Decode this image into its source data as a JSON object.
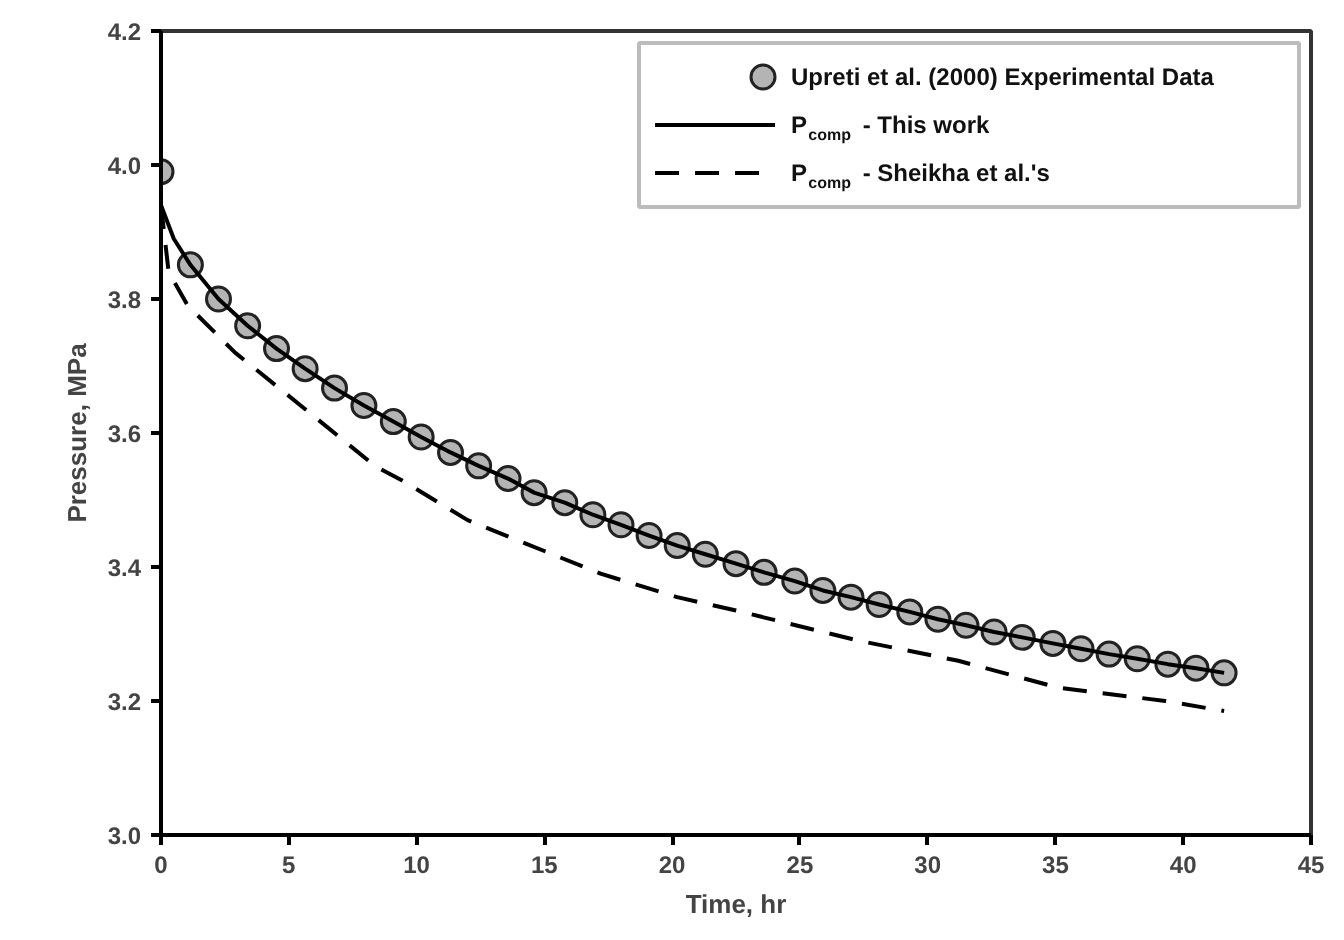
{
  "chart_data": {
    "type": "line",
    "xlabel": "Time, hr",
    "ylabel": "Pressure, MPa",
    "xlim": [
      0,
      45
    ],
    "ylim": [
      3.0,
      4.2
    ],
    "xticks": [
      0,
      5,
      10,
      15,
      20,
      25,
      30,
      35,
      40,
      45
    ],
    "yticks": [
      {
        "value": 3,
        "label": "3.0"
      },
      {
        "value": 3.2,
        "label": "3.2"
      },
      {
        "value": 3.4,
        "label": "3.4"
      },
      {
        "value": 3.6,
        "label": "3.6"
      },
      {
        "value": 3.8,
        "label": "3.8"
      },
      {
        "value": 4,
        "label": "4.0"
      },
      {
        "value": 4.2,
        "label": "4.2"
      }
    ],
    "grid": false,
    "legend": "top right",
    "series": [
      {
        "name": "Upreti et al. (2000) Experimental Data",
        "type": "scatter",
        "marker": "circle",
        "color": "#b4b4b4",
        "x": [
          0,
          1.15,
          2.25,
          3.39,
          4.52,
          5.64,
          6.79,
          7.94,
          9.09,
          10.18,
          11.33,
          12.43,
          13.58,
          14.6,
          15.8,
          16.9,
          18.0,
          19.1,
          20.2,
          21.3,
          22.5,
          23.6,
          24.8,
          25.9,
          27.0,
          28.1,
          29.3,
          30.4,
          31.5,
          32.6,
          33.7,
          34.9,
          36.0,
          37.1,
          38.2,
          39.4,
          40.5,
          41.6
        ],
        "values": [
          3.99,
          3.851,
          3.8,
          3.76,
          3.726,
          3.696,
          3.667,
          3.641,
          3.617,
          3.594,
          3.571,
          3.551,
          3.532,
          3.511,
          3.496,
          3.478,
          3.463,
          3.447,
          3.432,
          3.419,
          3.405,
          3.392,
          3.379,
          3.365,
          3.355,
          3.344,
          3.333,
          3.322,
          3.313,
          3.303,
          3.295,
          3.286,
          3.278,
          3.27,
          3.263,
          3.255,
          3.249,
          3.242
        ]
      },
      {
        "name": "P$_{comp}$ - This work",
        "line_style": "solid",
        "color": "#000000",
        "x": [
          0,
          0.5,
          1.15,
          2.25,
          3.39,
          4.52,
          5.64,
          6.79,
          7.94,
          9.09,
          10.18,
          11.33,
          12.43,
          13.58,
          14.6,
          15.8,
          16.9,
          18.0,
          19.1,
          20.2,
          21.3,
          22.5,
          23.6,
          24.8,
          25.9,
          27.0,
          28.1,
          29.3,
          30.4,
          31.5,
          32.6,
          33.7,
          34.9,
          36.0,
          37.1,
          38.2,
          39.4,
          40.5,
          41.6
        ],
        "values": [
          3.94,
          3.89,
          3.851,
          3.8,
          3.76,
          3.726,
          3.696,
          3.667,
          3.641,
          3.617,
          3.594,
          3.571,
          3.551,
          3.532,
          3.511,
          3.496,
          3.478,
          3.463,
          3.447,
          3.432,
          3.419,
          3.405,
          3.392,
          3.379,
          3.365,
          3.355,
          3.344,
          3.333,
          3.322,
          3.313,
          3.303,
          3.295,
          3.286,
          3.278,
          3.27,
          3.263,
          3.255,
          3.249,
          3.242
        ]
      },
      {
        "name": "P$_{comp}$ - Sheikha et al.'s",
        "line_style": "dashed",
        "color": "#000000",
        "x": [
          0,
          0.3,
          1.05,
          2.9,
          5.5,
          8.4,
          9.4,
          12.0,
          17.2,
          20.2,
          22.5,
          27.3,
          31.2,
          35.1,
          39.3,
          41.6
        ],
        "values": [
          3.94,
          3.84,
          3.79,
          3.72,
          3.64,
          3.55,
          3.53,
          3.47,
          3.39,
          3.355,
          3.335,
          3.29,
          3.26,
          3.22,
          3.2,
          3.185
        ]
      }
    ]
  }
}
